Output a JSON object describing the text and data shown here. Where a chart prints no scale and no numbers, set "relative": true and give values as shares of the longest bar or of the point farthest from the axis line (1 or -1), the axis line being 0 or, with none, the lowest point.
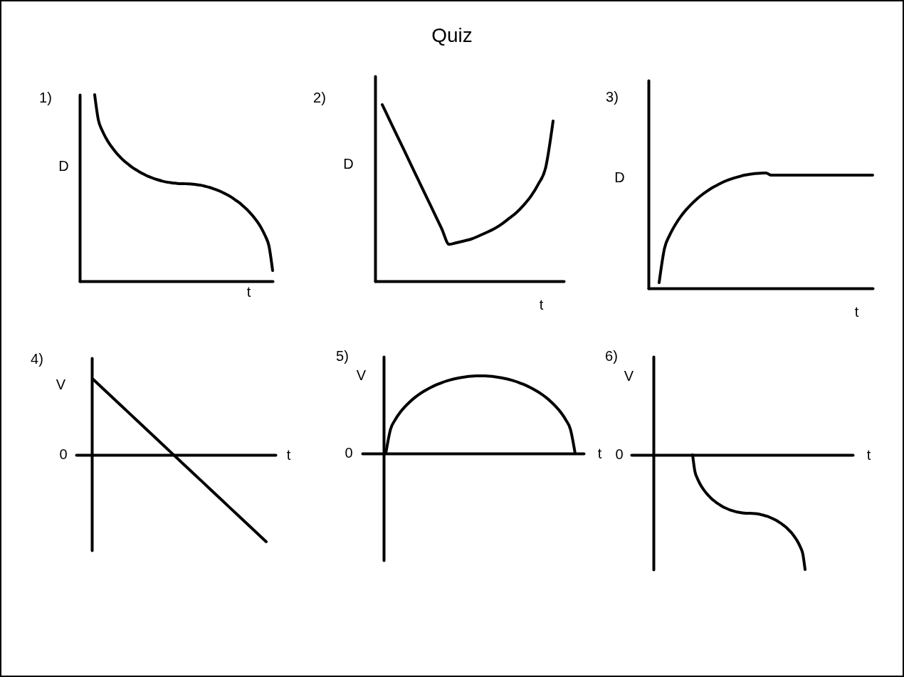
{
  "chart_data": [
    {
      "type": "other",
      "title": "Quiz"
    },
    {
      "type": "line",
      "title": "1)",
      "xlabel": "t",
      "ylabel": "D",
      "relative": true,
      "color": "#000000",
      "categories": [
        null,
        null,
        null,
        null,
        null,
        null,
        null,
        null,
        null,
        null,
        null,
        null,
        null,
        null,
        null,
        null,
        null,
        null,
        null,
        null,
        null,
        null,
        null,
        null,
        null,
        null,
        null,
        null,
        null,
        null,
        null,
        null,
        null,
        null,
        null,
        null,
        null,
        null,
        null,
        null,
        null,
        null,
        null,
        null,
        null,
        null,
        null,
        null,
        null
      ],
      "values": [
        1,
        0.864,
        0.809,
        0.769,
        0.736,
        0.709,
        0.684,
        0.663,
        0.644,
        0.628,
        0.612,
        0.599,
        0.587,
        0.576,
        0.566,
        0.558,
        0.55,
        0.544,
        0.538,
        0.533,
        0.53,
        0.527,
        0.525,
        0.523,
        0.523,
        0.522,
        0.521,
        0.519,
        0.516,
        0.513,
        0.508,
        0.503,
        0.496,
        0.489,
        0.481,
        0.471,
        0.461,
        0.449,
        0.435,
        0.421,
        0.404,
        0.386,
        0.365,
        0.342,
        0.315,
        0.283,
        0.243,
        0.19,
        0.057
      ]
    },
    {
      "type": "line",
      "title": "2)",
      "xlabel": "t",
      "ylabel": "D",
      "relative": true,
      "color": "#000000",
      "categories": [
        null,
        null,
        null,
        null,
        null,
        null,
        null,
        null,
        null,
        null,
        null,
        null,
        null,
        null,
        null,
        null,
        null,
        null,
        null,
        null,
        null,
        null,
        null,
        null
      ],
      "values": [
        1,
        0.912,
        0.824,
        0.737,
        0.649,
        0.561,
        0.473,
        0.386,
        0.298,
        0.209,
        0.218,
        0.228,
        0.239,
        0.256,
        0.275,
        0.295,
        0.321,
        0.353,
        0.386,
        0.429,
        0.48,
        0.549,
        0.643,
        0.907
      ]
    },
    {
      "type": "line",
      "title": "3)",
      "xlabel": "t",
      "ylabel": "D",
      "relative": true,
      "color": "#000000",
      "categories": [
        null,
        null,
        null,
        null,
        null,
        null,
        null,
        null,
        null,
        null,
        null,
        null,
        null,
        null,
        null,
        null,
        null,
        null,
        null,
        null,
        null,
        null,
        null,
        null,
        null,
        null,
        null,
        null,
        null,
        null,
        null,
        null,
        null,
        null,
        null,
        null,
        null,
        null,
        null,
        null,
        null
      ],
      "values": [
        0.049,
        0.346,
        0.464,
        0.55,
        0.62,
        0.678,
        0.728,
        0.772,
        0.81,
        0.843,
        0.873,
        0.898,
        0.921,
        0.94,
        0.956,
        0.969,
        0.981,
        0.989,
        0.995,
        0.999,
        1,
        0.981,
        0.981,
        0.981,
        0.981,
        0.981,
        0.981,
        0.981,
        0.981,
        0.981,
        0.981,
        0.981,
        0.981,
        0.981,
        0.981,
        0.981,
        0.981,
        0.981,
        0.981,
        0.981,
        0.981
      ]
    },
    {
      "type": "line",
      "title": "4)",
      "xlabel": "t",
      "ylabel": "V",
      "relative": true,
      "annotations": [
        "0"
      ],
      "color": "#000000",
      "categories": [
        null,
        null,
        null,
        null,
        null,
        null,
        null,
        null,
        null,
        null,
        null,
        null,
        null
      ],
      "values": [
        0.869,
        0.713,
        0.558,
        0.402,
        0.246,
        0.09,
        -0.066,
        -0.221,
        -0.377,
        -0.533,
        -0.689,
        -0.844,
        -1
      ]
    },
    {
      "type": "line",
      "title": "5)",
      "xlabel": "t",
      "ylabel": "V",
      "relative": true,
      "annotations": [
        "0"
      ],
      "color": "#000000",
      "categories": [
        null,
        null,
        null,
        null,
        null,
        null,
        null,
        null,
        null,
        null,
        null,
        null,
        null,
        null,
        null,
        null,
        null,
        null,
        null,
        null,
        null,
        null,
        null,
        null,
        null,
        null,
        null,
        null,
        null,
        null,
        null,
        null,
        null,
        null,
        null,
        null,
        null,
        null,
        null,
        null,
        null
      ],
      "values": [
        0,
        0.312,
        0.436,
        0.527,
        0.6,
        0.661,
        0.714,
        0.76,
        0.8,
        0.835,
        0.866,
        0.893,
        0.917,
        0.937,
        0.954,
        0.968,
        0.98,
        0.989,
        0.995,
        0.999,
        1,
        0.999,
        0.995,
        0.989,
        0.98,
        0.968,
        0.954,
        0.937,
        0.917,
        0.893,
        0.866,
        0.835,
        0.8,
        0.76,
        0.714,
        0.661,
        0.6,
        0.527,
        0.436,
        0.312,
        0
      ]
    },
    {
      "type": "line",
      "title": "6)",
      "xlabel": "t",
      "ylabel": "V",
      "relative": true,
      "annotations": [
        "0"
      ],
      "color": "#000000",
      "categories": [
        null,
        null,
        null,
        null,
        null,
        null,
        null,
        null,
        null,
        null,
        null,
        null,
        null,
        null,
        null,
        null,
        null,
        null,
        null,
        null,
        null,
        null,
        null,
        null,
        null,
        null,
        null,
        null,
        null,
        null,
        null,
        null,
        null,
        null,
        null,
        null,
        null,
        null,
        null,
        null,
        null,
        null,
        null,
        null,
        null,
        null,
        null,
        null,
        null
      ],
      "values": [
        0,
        -0.145,
        -0.204,
        -0.247,
        -0.282,
        -0.311,
        -0.337,
        -0.36,
        -0.38,
        -0.398,
        -0.414,
        -0.428,
        -0.441,
        -0.453,
        -0.463,
        -0.472,
        -0.48,
        -0.487,
        -0.493,
        -0.498,
        -0.502,
        -0.505,
        -0.508,
        -0.509,
        -0.509,
        -0.51,
        -0.511,
        -0.513,
        -0.516,
        -0.52,
        -0.525,
        -0.531,
        -0.537,
        -0.545,
        -0.554,
        -0.564,
        -0.575,
        -0.588,
        -0.601,
        -0.617,
        -0.634,
        -0.654,
        -0.675,
        -0.7,
        -0.729,
        -0.762,
        -0.804,
        -0.86,
        -1
      ]
    }
  ]
}
